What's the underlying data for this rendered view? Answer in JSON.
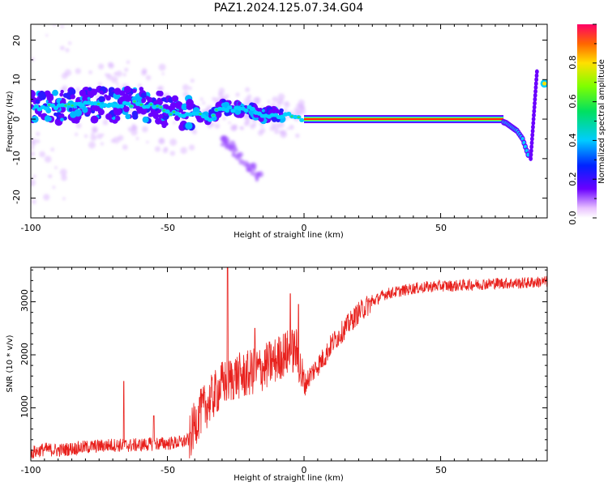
{
  "title": "PAZ1.2024.125.07.34.G04",
  "colors": {
    "snr_line": "#e8201c",
    "spectrum_ridge": "#ff1a1a",
    "background": "#ffffff"
  },
  "chart_data": [
    {
      "type": "heatmap",
      "title": "",
      "xlabel": "Height of straight line (km)",
      "ylabel": "Frequency (Hz)",
      "xlim": [
        -100,
        89
      ],
      "ylim": [
        -25,
        24
      ],
      "x_ticks": [
        "-100",
        "-50",
        "0",
        "50"
      ],
      "y_ticks": [
        "20",
        "10",
        "0",
        "-10",
        "-20"
      ],
      "colorbar": {
        "label": "Normalized spectral amplitude",
        "range": [
          0,
          1
        ],
        "ticks": [
          "0.0",
          "0.2",
          "0.4",
          "0.6",
          "0.8"
        ],
        "colormap": "rainbow"
      },
      "ridge": {
        "name": "",
        "x": [
          -100,
          -90,
          -80,
          -70,
          -60,
          -50,
          -45,
          -40,
          -35,
          -30,
          -25,
          -20,
          -15,
          -10,
          -5,
          0,
          5,
          10,
          20,
          30,
          40,
          50,
          60,
          70,
          74,
          76,
          78,
          80,
          82
        ],
        "y": [
          3,
          3,
          4,
          3.5,
          4,
          2,
          1,
          2,
          0,
          3,
          2.5,
          2.5,
          1,
          1,
          1,
          0,
          0,
          0,
          0,
          0,
          0,
          0,
          0,
          0,
          -1,
          -2,
          -3,
          -5,
          -9
        ]
      }
    },
    {
      "type": "line",
      "title": "",
      "xlabel": "Height of straight line (km)",
      "ylabel": "SNR (10 * v/v)",
      "xlim": [
        -100,
        89
      ],
      "ylim": [
        0,
        3650
      ],
      "x_ticks": [
        "-100",
        "-50",
        "0",
        "50"
      ],
      "y_ticks": [
        "1000",
        "2000",
        "3000"
      ],
      "series": [
        {
          "name": "",
          "x": [
            -100,
            -95,
            -90,
            -85,
            -80,
            -75,
            -70,
            -65,
            -60,
            -55,
            -50,
            -45,
            -42,
            -40,
            -38,
            -35,
            -32,
            -30,
            -28,
            -25,
            -22,
            -20,
            -18,
            -15,
            -12,
            -10,
            -8,
            -5,
            -3,
            0,
            2,
            5,
            8,
            10,
            15,
            20,
            25,
            30,
            35,
            40,
            45,
            50,
            55,
            60,
            65,
            70,
            75,
            80,
            85,
            89
          ],
          "y": [
            150,
            220,
            200,
            230,
            260,
            280,
            300,
            290,
            300,
            320,
            330,
            350,
            400,
            700,
            900,
            1100,
            1300,
            1450,
            1500,
            1600,
            1600,
            1650,
            1700,
            1750,
            1850,
            1900,
            2000,
            2050,
            2100,
            1400,
            1600,
            1800,
            2000,
            2200,
            2500,
            2800,
            3000,
            3150,
            3200,
            3250,
            3280,
            3300,
            3300,
            3320,
            3330,
            3350,
            3350,
            3350,
            3370,
            3380
          ],
          "spikes": [
            {
              "x": -66,
              "y": 1500
            },
            {
              "x": -55,
              "y": 850
            },
            {
              "x": -38,
              "y": 1200
            },
            {
              "x": -28,
              "y": 3650
            },
            {
              "x": -18,
              "y": 2500
            },
            {
              "x": -5,
              "y": 3150
            },
            {
              "x": -2,
              "y": 2950
            }
          ]
        }
      ]
    }
  ]
}
